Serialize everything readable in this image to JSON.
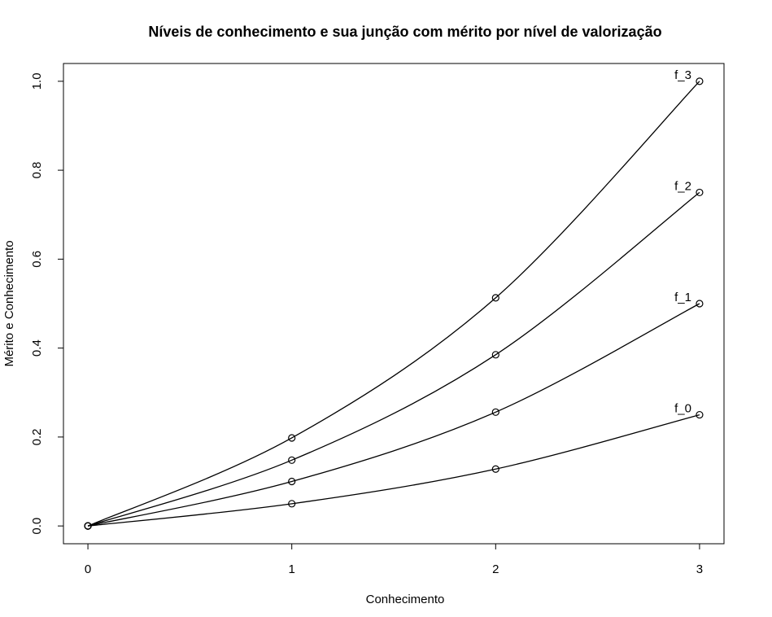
{
  "chart_data": {
    "type": "line",
    "title": "Níveis de conhecimento e sua junção com mérito por nível de valorização",
    "xlabel": "Conhecimento",
    "ylabel": "Mérito e Conhecimento",
    "xlim": [
      -0.12,
      3.12
    ],
    "ylim": [
      -0.04,
      1.04
    ],
    "x_ticks": [
      "0",
      "1",
      "2",
      "3"
    ],
    "y_ticks": [
      "0.0",
      "0.2",
      "0.4",
      "0.6",
      "0.8",
      "1.0"
    ],
    "x": [
      0,
      1,
      2,
      3
    ],
    "series": [
      {
        "name": "f_0",
        "values": [
          0,
          0.05,
          0.128,
          0.25
        ]
      },
      {
        "name": "f_1",
        "values": [
          0,
          0.1,
          0.256,
          0.5
        ]
      },
      {
        "name": "f_2",
        "values": [
          0,
          0.148,
          0.385,
          0.75
        ]
      },
      {
        "name": "f_3",
        "values": [
          0,
          0.198,
          0.513,
          1.0
        ]
      }
    ],
    "grid": false,
    "legend": "none",
    "marker": "open-circle"
  }
}
